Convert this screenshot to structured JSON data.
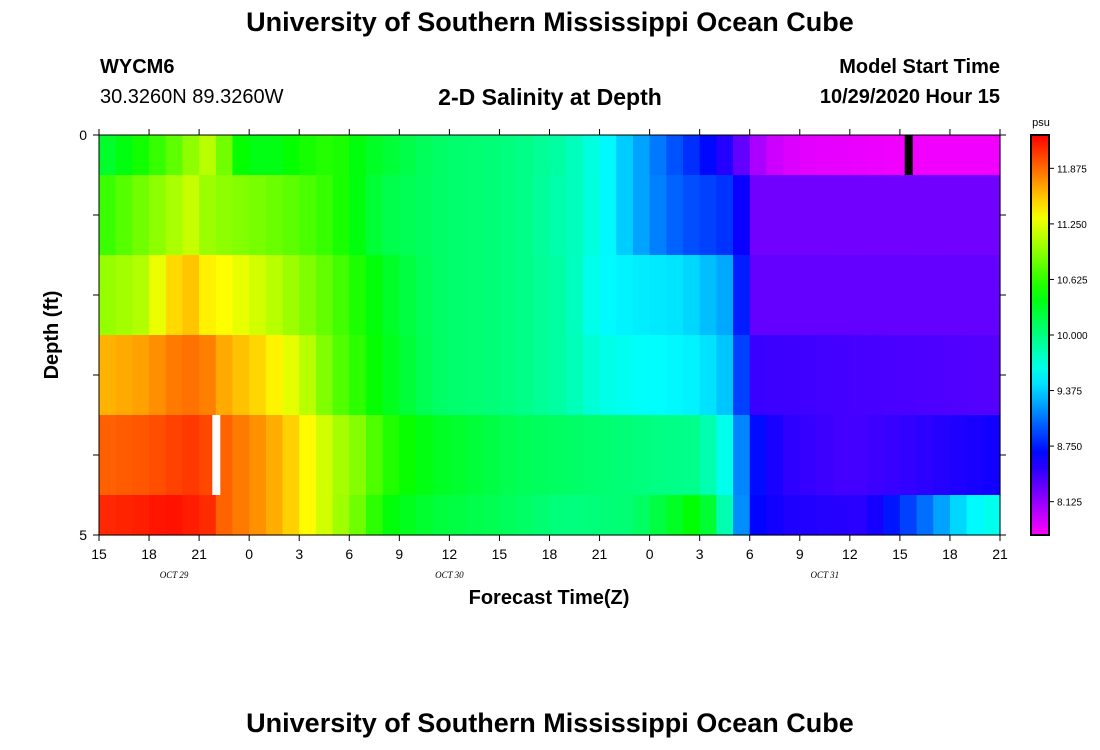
{
  "page": {
    "title": "University of Southern Mississippi Ocean Cube",
    "footer_title": "University of Southern Mississippi Ocean Cube"
  },
  "header": {
    "station_id": "WYCM6",
    "coordinates": "30.3260N 89.3260W",
    "chart_title": "2-D Salinity at Depth",
    "model_start_label": "Model Start Time",
    "model_start_value": "10/29/2020 Hour 15"
  },
  "chart_data": {
    "type": "heatmap",
    "title": "2-D Salinity at Depth",
    "xlabel": "Forecast Time(Z)",
    "ylabel": "Depth (ft)",
    "x_ticks": [
      "15",
      "18",
      "21",
      "0",
      "3",
      "6",
      "9",
      "12",
      "15",
      "18",
      "21",
      "0",
      "3",
      "6",
      "9",
      "12",
      "15",
      "18",
      "21"
    ],
    "x_range_hours": [
      0,
      54
    ],
    "date_labels": [
      {
        "text": "OCT 29",
        "hour": 4.5
      },
      {
        "text": "OCT 30",
        "hour": 21
      },
      {
        "text": "OCT 31",
        "hour": 43.5
      }
    ],
    "y_ticks": [
      "0",
      "5"
    ],
    "ylim": [
      0,
      5
    ],
    "colorbar": {
      "unit": "psu",
      "min": 7.75,
      "max": 12.25,
      "labels": [
        "11.875",
        "11.250",
        "10.625",
        "10.000",
        "9.375",
        "8.750",
        "8.125"
      ],
      "label_values": [
        11.875,
        11.25,
        10.625,
        10.0,
        9.375,
        8.75,
        8.125
      ]
    },
    "missing_data": [
      {
        "layer": 0,
        "hour": 48.5,
        "color": "#000000"
      },
      {
        "layer": 4,
        "hour": 7,
        "color": "#ffffff"
      }
    ],
    "depth_layers": [
      {
        "depth_range": [
          0,
          0.5
        ],
        "hours": [
          0,
          2,
          4,
          5.5,
          6.5,
          7.5,
          8,
          10,
          12,
          14,
          16,
          20,
          25,
          28,
          30,
          32,
          34,
          36,
          38,
          39,
          40,
          42,
          48.5,
          54
        ],
        "values": [
          10.25,
          10.45,
          10.7,
          10.95,
          11.1,
          10.85,
          10.5,
          10.35,
          10.5,
          10.6,
          10.35,
          10.1,
          10.0,
          9.85,
          9.6,
          9.3,
          9.0,
          8.75,
          8.45,
          8.15,
          7.95,
          7.85,
          7.8,
          7.8
        ]
      },
      {
        "depth_range": [
          0.5,
          1.5
        ],
        "hours": [
          0,
          2,
          4,
          5.5,
          6.5,
          7.5,
          10,
          12,
          14,
          17,
          20,
          25,
          29,
          31,
          33,
          35,
          38,
          39.5,
          54
        ],
        "values": [
          10.6,
          10.8,
          11.0,
          11.15,
          11.0,
          10.95,
          10.85,
          10.75,
          10.6,
          10.2,
          10.1,
          10.0,
          9.75,
          9.45,
          9.15,
          8.95,
          8.8,
          8.25,
          8.25
        ]
      },
      {
        "depth_range": [
          1.5,
          2.5
        ],
        "hours": [
          0,
          3,
          4,
          5.5,
          6.5,
          7.5,
          10,
          12,
          14,
          17,
          20,
          25,
          28,
          30,
          32,
          35,
          38,
          39,
          54
        ],
        "values": [
          10.95,
          11.1,
          11.45,
          11.55,
          11.4,
          11.35,
          11.15,
          10.95,
          10.75,
          10.35,
          10.1,
          10.0,
          9.85,
          9.55,
          9.5,
          9.45,
          9.2,
          8.3,
          8.3
        ]
      },
      {
        "depth_range": [
          2.5,
          3.5
        ],
        "hours": [
          0,
          3,
          4,
          5.5,
          6.5,
          7.5,
          10,
          12,
          14,
          17,
          20,
          25,
          28,
          30,
          33,
          36,
          38,
          39,
          54
        ],
        "values": [
          11.6,
          11.7,
          11.8,
          11.85,
          11.8,
          11.65,
          11.45,
          11.2,
          10.8,
          10.4,
          10.1,
          10.0,
          9.85,
          9.65,
          9.55,
          9.5,
          9.3,
          8.45,
          8.35
        ]
      },
      {
        "depth_range": [
          3.5,
          4.5
        ],
        "hours": [
          0,
          3,
          4,
          5.5,
          6.5,
          7.5,
          10,
          12,
          14,
          16,
          17,
          20,
          25,
          28,
          33,
          36,
          38,
          39,
          41,
          45,
          54
        ],
        "values": [
          11.9,
          11.95,
          12.0,
          12.05,
          12.0,
          11.9,
          11.7,
          11.45,
          11.1,
          10.85,
          10.6,
          10.35,
          10.15,
          10.1,
          10.0,
          9.95,
          9.5,
          8.75,
          8.5,
          8.4,
          8.6
        ]
      },
      {
        "depth_range": [
          4.5,
          5
        ],
        "hours": [
          0,
          3,
          4,
          5.5,
          6.5,
          7.5,
          10,
          12,
          14,
          16,
          17,
          20,
          24,
          28,
          32,
          36,
          38,
          39,
          41,
          46,
          49,
          52,
          54
        ],
        "values": [
          12.1,
          12.15,
          12.2,
          12.15,
          12.1,
          11.9,
          11.7,
          11.45,
          11.1,
          10.75,
          10.45,
          10.25,
          10.15,
          10.0,
          10.05,
          10.5,
          9.6,
          8.7,
          8.55,
          8.5,
          8.95,
          9.5,
          9.65
        ]
      }
    ]
  }
}
